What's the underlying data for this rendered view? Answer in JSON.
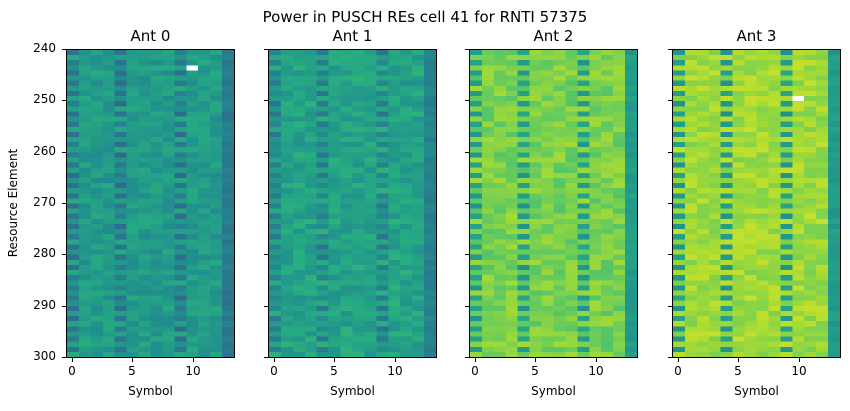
{
  "chart_data": {
    "type": "heatmap",
    "title": "Power in PUSCH REs cell 41 for RNTI 57375",
    "xlabel": "Symbol",
    "ylabel": "Resource Element",
    "colormap": "viridis",
    "x_range": [
      -0.5,
      13.5
    ],
    "y_range": [
      240,
      300
    ],
    "x_ticks": [
      0,
      5,
      10
    ],
    "y_ticks": [
      240,
      250,
      260,
      270,
      280,
      290,
      300
    ],
    "n_symbols": 14,
    "n_rows": 60,
    "panels": [
      {
        "title": "Ant 0",
        "base_level": 0.55,
        "dmrs_level": 0.4,
        "last_col_level": 0.42,
        "spread": 0.07,
        "white_cell": {
          "symbol": 10,
          "row": 243
        }
      },
      {
        "title": "Ant 1",
        "base_level": 0.58,
        "dmrs_level": 0.44,
        "last_col_level": 0.45,
        "spread": 0.07,
        "white_cell": null
      },
      {
        "title": "Ant 2",
        "base_level": 0.8,
        "dmrs_level": 0.55,
        "last_col_level": 0.55,
        "spread": 0.07,
        "white_cell": null
      },
      {
        "title": "Ant 3",
        "base_level": 0.86,
        "dmrs_level": 0.55,
        "last_col_level": 0.55,
        "spread": 0.06,
        "white_cell": {
          "symbol": 10,
          "row": 249
        }
      }
    ],
    "dmrs_symbols": [
      4,
      9
    ],
    "darker_last_symbol": 13
  },
  "suptitle": "Power in PUSCH REs cell 41 for RNTI 57375",
  "axes": [
    {
      "title": "Ant 0",
      "xlabel": "Symbol",
      "ylabel": "Resource Element"
    },
    {
      "title": "Ant 1",
      "xlabel": "Symbol"
    },
    {
      "title": "Ant 2",
      "xlabel": "Symbol"
    },
    {
      "title": "Ant 3",
      "xlabel": "Symbol"
    }
  ],
  "xtick_labels": [
    "0",
    "5",
    "10"
  ],
  "ytick_labels": [
    "240",
    "250",
    "260",
    "270",
    "280",
    "290",
    "300"
  ]
}
